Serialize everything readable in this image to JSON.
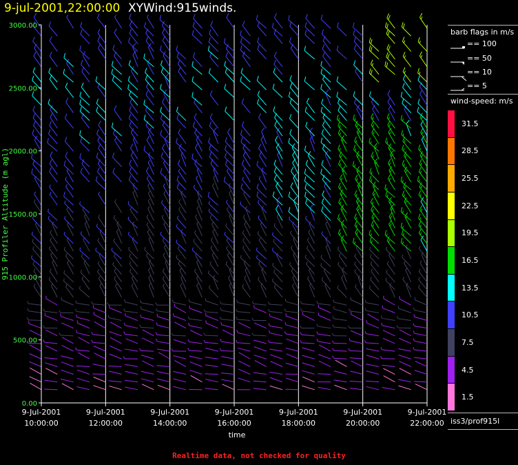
{
  "header": {
    "datetime": "9-jul-2001,22:00:00",
    "product": "XYWind:915winds."
  },
  "legend": {
    "barb_title": "barb flags in m/s",
    "barb_entries": [
      "== 100",
      "== 50",
      "== 10",
      "== 5"
    ],
    "speed_title": "wind-speed: m/s",
    "colorbar": [
      {
        "label": "1.5",
        "color": "#ff77dd"
      },
      {
        "label": "4.5",
        "color": "#a020f0"
      },
      {
        "label": "7.5",
        "color": "#404060"
      },
      {
        "label": "10.5",
        "color": "#4040ff"
      },
      {
        "label": "13.5",
        "color": "#00ffff"
      },
      {
        "label": "16.5",
        "color": "#00dd00"
      },
      {
        "label": "19.5",
        "color": "#aaff00"
      },
      {
        "label": "22.5",
        "color": "#ffff00"
      },
      {
        "label": "25.5",
        "color": "#ffaa00"
      },
      {
        "label": "28.5",
        "color": "#ff7700"
      },
      {
        "label": "31.5",
        "color": "#ff1040"
      }
    ]
  },
  "source": "iss3/prof915l",
  "footer_note": "Realtime data, not checked for quality",
  "colors": {
    "axis_label": "#44ff44",
    "title_date": "#ffff00",
    "note": "#ff2020"
  },
  "chart_data": {
    "type": "scatter",
    "subtype": "wind-barb time-height",
    "xlabel": "time",
    "ylabel": "915 Profiler Altitude (m agl)",
    "ylim": [
      0,
      3000
    ],
    "y_ticks": [
      "0.00",
      "500.00",
      "1000.00",
      "1500.00",
      "2000.00",
      "2500.00",
      "3000.00"
    ],
    "x_ticks": [
      {
        "date": "9-Jul-2001",
        "time": "10:00:00"
      },
      {
        "date": "9-Jul-2001",
        "time": "12:00:00"
      },
      {
        "date": "9-Jul-2001",
        "time": "14:00:00"
      },
      {
        "date": "9-Jul-2001",
        "time": "16:00:00"
      },
      {
        "date": "9-Jul-2001",
        "time": "18:00:00"
      },
      {
        "date": "9-Jul-2001",
        "time": "20:00:00"
      },
      {
        "date": "9-Jul-2001",
        "time": "22:00:00"
      }
    ],
    "xlim": [
      "9-Jul-2001 10:00:00",
      "9-Jul-2001 22:00:00"
    ],
    "grid": "vertical lines at major ticks",
    "time_step_minutes": 30,
    "barb_colors_by_speed": true,
    "speed_profile_m_s": [
      {
        "altitude": 100,
        "speed": 3
      },
      {
        "altitude": 500,
        "speed": 5
      },
      {
        "altitude": 1000,
        "speed": 8
      },
      {
        "altitude": 1500,
        "speed": 9
      },
      {
        "altitude": 2000,
        "speed": 11
      },
      {
        "altitude": 2500,
        "speed": 12
      },
      {
        "altitude": 3000,
        "speed": 10
      }
    ],
    "evening_speed_increase_m_s": [
      {
        "time": "18:00:00",
        "altitude": 1700,
        "speed": 13
      },
      {
        "time": "20:00:00",
        "altitude": 1500,
        "speed": 17
      },
      {
        "time": "21:00:00",
        "altitude": 2800,
        "speed": 20
      }
    ]
  }
}
